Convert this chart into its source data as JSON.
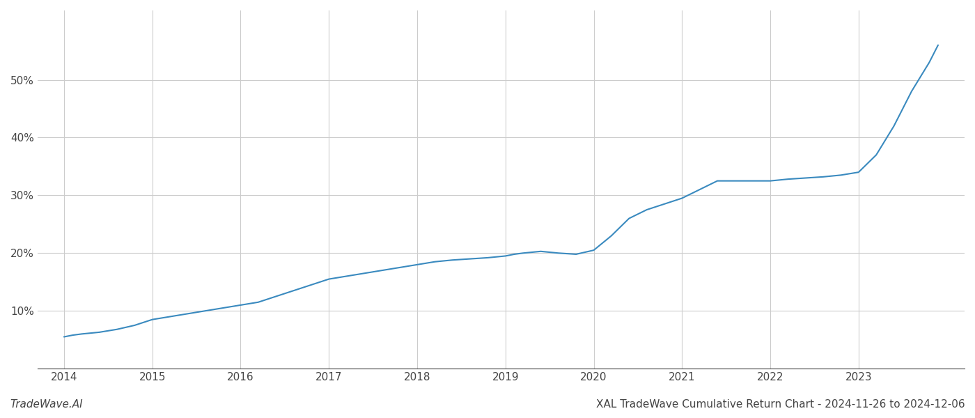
{
  "title": "XAL TradeWave Cumulative Return Chart - 2024-11-26 to 2024-12-06",
  "watermark": "TradeWave.AI",
  "line_color": "#3a8abf",
  "background_color": "#ffffff",
  "grid_color": "#cccccc",
  "x_values": [
    2014.0,
    2014.1,
    2014.2,
    2014.4,
    2014.6,
    2014.8,
    2015.0,
    2015.2,
    2015.4,
    2015.6,
    2015.8,
    2016.0,
    2016.2,
    2016.4,
    2016.6,
    2016.8,
    2017.0,
    2017.2,
    2017.4,
    2017.6,
    2017.8,
    2018.0,
    2018.2,
    2018.4,
    2018.6,
    2018.8,
    2019.0,
    2019.1,
    2019.2,
    2019.4,
    2019.6,
    2019.8,
    2020.0,
    2020.2,
    2020.4,
    2020.6,
    2020.8,
    2021.0,
    2021.2,
    2021.4,
    2021.6,
    2021.8,
    2022.0,
    2022.2,
    2022.4,
    2022.6,
    2022.8,
    2023.0,
    2023.2,
    2023.4,
    2023.6,
    2023.8,
    2023.9
  ],
  "y_values": [
    5.5,
    5.8,
    6.0,
    6.3,
    6.8,
    7.5,
    8.5,
    9.0,
    9.5,
    10.0,
    10.5,
    11.0,
    11.5,
    12.5,
    13.5,
    14.5,
    15.5,
    16.0,
    16.5,
    17.0,
    17.5,
    18.0,
    18.5,
    18.8,
    19.0,
    19.2,
    19.5,
    19.8,
    20.0,
    20.3,
    20.0,
    19.8,
    20.5,
    23.0,
    26.0,
    27.5,
    28.5,
    29.5,
    31.0,
    32.5,
    32.5,
    32.5,
    32.5,
    32.8,
    33.0,
    33.2,
    33.5,
    34.0,
    37.0,
    42.0,
    48.0,
    53.0,
    56.0
  ],
  "yticks": [
    10,
    20,
    30,
    40,
    50
  ],
  "ytick_labels": [
    "10%",
    "20%",
    "30%",
    "40%",
    "50%"
  ],
  "xticks": [
    2014,
    2015,
    2016,
    2017,
    2018,
    2019,
    2020,
    2021,
    2022,
    2023
  ],
  "ylim": [
    0,
    62
  ],
  "xlim": [
    2013.7,
    2024.2
  ],
  "line_width": 1.5,
  "title_fontsize": 11,
  "tick_fontsize": 11,
  "watermark_fontsize": 11
}
